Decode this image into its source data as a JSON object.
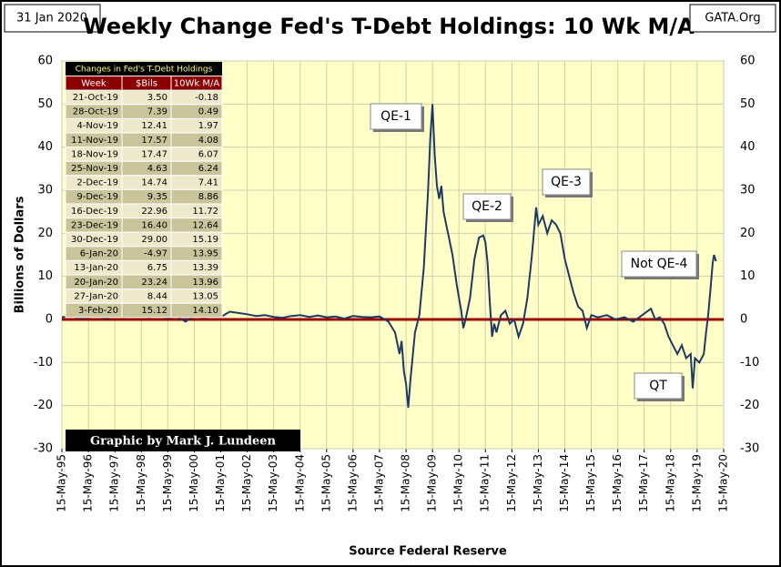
{
  "chart_data": {
    "type": "line",
    "title": "Weekly Change Fed's T-Debt Holdings: 10 Wk M/A",
    "date_label": "31 Jan 2020",
    "source_site": "GATA.Org",
    "ylabel": "Billions  of  Dollars",
    "xlabel": "Source Federal Reserve",
    "credit": "Graphic by Mark J. Lundeen",
    "annotations": [
      "QE-1",
      "QE-2",
      "QE-3",
      "Not QE-4",
      "QT"
    ],
    "xlim": [
      "1995-05-15",
      "2020-05-15"
    ],
    "xticks": [
      {
        "value": "1995-05-15",
        "label": "15-May-95"
      },
      {
        "value": "1996-05-15",
        "label": "15-May-96"
      },
      {
        "value": "1997-05-15",
        "label": "15-May-97"
      },
      {
        "value": "1998-05-15",
        "label": "15-May-98"
      },
      {
        "value": "1999-05-15",
        "label": "15-May-99"
      },
      {
        "value": "2000-05-15",
        "label": "15-May-00"
      },
      {
        "value": "2001-05-15",
        "label": "15-May-01"
      },
      {
        "value": "2002-05-15",
        "label": "15-May-02"
      },
      {
        "value": "2003-05-15",
        "label": "15-May-03"
      },
      {
        "value": "2004-05-15",
        "label": "15-May-04"
      },
      {
        "value": "2005-05-15",
        "label": "15-May-05"
      },
      {
        "value": "2006-05-15",
        "label": "15-May-06"
      },
      {
        "value": "2007-05-15",
        "label": "15-May-07"
      },
      {
        "value": "2008-05-15",
        "label": "15-May-08"
      },
      {
        "value": "2009-05-15",
        "label": "15-May-09"
      },
      {
        "value": "2010-05-15",
        "label": "15-May-10"
      },
      {
        "value": "2011-05-15",
        "label": "15-May-11"
      },
      {
        "value": "2012-05-15",
        "label": "15-May-12"
      },
      {
        "value": "2013-05-15",
        "label": "15-May-13"
      },
      {
        "value": "2014-05-15",
        "label": "15-May-14"
      },
      {
        "value": "2015-05-15",
        "label": "15-May-15"
      },
      {
        "value": "2016-05-15",
        "label": "15-May-16"
      },
      {
        "value": "2017-05-15",
        "label": "15-May-17"
      },
      {
        "value": "2018-05-15",
        "label": "15-May-18"
      },
      {
        "value": "2019-05-15",
        "label": "15-May-19"
      },
      {
        "value": "2020-05-15",
        "label": "15-May-20"
      }
    ],
    "ylim": [
      -30,
      60
    ],
    "yticks": [
      -30,
      -20,
      -10,
      0,
      10,
      20,
      30,
      40,
      50,
      60
    ],
    "grid": true,
    "hline": {
      "value": 0,
      "color": "#a00000"
    },
    "x": [
      "1995-05-15",
      "1995-09-15",
      "1996-01-15",
      "1996-05-15",
      "1996-09-15",
      "1997-01-15",
      "1997-05-15",
      "1997-09-15",
      "1998-01-15",
      "1998-05-15",
      "1998-09-15",
      "1999-01-15",
      "1999-05-15",
      "1999-09-15",
      "2000-01-15",
      "2000-05-15",
      "2000-09-15",
      "2001-01-15",
      "2001-05-15",
      "2001-09-15",
      "2002-01-15",
      "2002-05-15",
      "2002-09-15",
      "2003-01-15",
      "2003-05-15",
      "2003-09-15",
      "2004-01-15",
      "2004-05-15",
      "2004-09-15",
      "2005-01-15",
      "2005-05-15",
      "2005-09-15",
      "2006-01-15",
      "2006-05-15",
      "2006-09-15",
      "2007-01-15",
      "2007-05-15",
      "2007-09-15",
      "2007-12-15",
      "2008-02-15",
      "2008-03-15",
      "2008-04-15",
      "2008-05-15",
      "2008-06-15",
      "2008-07-15",
      "2008-09-15",
      "2008-11-15",
      "2009-01-15",
      "2009-03-15",
      "2009-04-15",
      "2009-05-15",
      "2009-06-15",
      "2009-07-15",
      "2009-08-15",
      "2009-09-15",
      "2009-10-15",
      "2009-12-15",
      "2010-02-15",
      "2010-04-15",
      "2010-06-15",
      "2010-07-15",
      "2010-08-15",
      "2010-10-15",
      "2010-12-15",
      "2011-02-15",
      "2011-04-15",
      "2011-05-15",
      "2011-06-15",
      "2011-07-15",
      "2011-08-15",
      "2011-09-15",
      "2011-10-15",
      "2011-12-15",
      "2012-02-15",
      "2012-04-15",
      "2012-06-15",
      "2012-08-15",
      "2012-10-15",
      "2012-12-15",
      "2013-02-15",
      "2013-04-15",
      "2013-05-15",
      "2013-07-15",
      "2013-09-15",
      "2013-11-15",
      "2014-01-15",
      "2014-03-15",
      "2014-05-15",
      "2014-07-15",
      "2014-09-15",
      "2014-11-15",
      "2015-01-15",
      "2015-03-15",
      "2015-05-15",
      "2015-08-15",
      "2015-12-15",
      "2016-04-15",
      "2016-08-15",
      "2016-12-15",
      "2017-04-15",
      "2017-08-15",
      "2017-10-15",
      "2017-12-15",
      "2018-02-15",
      "2018-04-15",
      "2018-06-15",
      "2018-08-15",
      "2018-10-15",
      "2018-12-15",
      "2019-02-15",
      "2019-03-15",
      "2019-04-15",
      "2019-06-15",
      "2019-08-15",
      "2019-09-15",
      "2019-10-15",
      "2019-11-15",
      "2019-12-15",
      "2020-01-03",
      "2020-01-31"
    ],
    "series": [
      {
        "color": "#1f3a60",
        "values": [
          0.5,
          0.8,
          0.3,
          0.5,
          1.0,
          0.2,
          1.2,
          0.5,
          1.5,
          0.8,
          0.5,
          1.2,
          0.3,
          0.8,
          -0.5,
          1.0,
          0.4,
          0.8,
          0.6,
          1.8,
          1.5,
          1.2,
          0.8,
          1.0,
          0.6,
          0.4,
          0.8,
          1.0,
          0.6,
          0.9,
          0.5,
          0.7,
          0.2,
          0.8,
          0.6,
          0.5,
          0.7,
          -0.5,
          -3,
          -8,
          -5,
          -12,
          -15,
          -20.5,
          -14,
          -3,
          1,
          12,
          30,
          42,
          50,
          38,
          31,
          28,
          31,
          25,
          20,
          15,
          8,
          2,
          -2,
          0,
          5,
          14,
          19,
          19.5,
          18,
          13,
          4,
          -4,
          -1,
          -3,
          1,
          2,
          -1,
          0,
          -4,
          -1,
          5,
          15,
          26,
          22,
          24,
          20,
          23,
          22,
          20,
          14,
          10,
          6,
          3,
          2,
          -2,
          1,
          0.5,
          1,
          0,
          0.5,
          -0.5,
          1,
          2.5,
          0,
          0.5,
          -1,
          -4,
          -6,
          -8,
          -6,
          -9,
          -8,
          -16,
          -9,
          -10,
          -8,
          -3,
          1,
          7,
          13,
          15,
          13.5
        ]
      }
    ]
  },
  "table": {
    "title": "Changes in Fed's T-Debt Holdings",
    "columns": [
      "Week",
      "$Bils",
      "10Wk M/A"
    ],
    "rows": [
      [
        "21-Oct-19",
        "3.50",
        "-0.18"
      ],
      [
        "28-Oct-19",
        "7.39",
        "0.49"
      ],
      [
        "4-Nov-19",
        "12.41",
        "1.97"
      ],
      [
        "11-Nov-19",
        "17.57",
        "4.08"
      ],
      [
        "18-Nov-19",
        "17.47",
        "6.07"
      ],
      [
        "25-Nov-19",
        "4.63",
        "6.24"
      ],
      [
        "2-Dec-19",
        "14.74",
        "7.41"
      ],
      [
        "9-Dec-19",
        "9.35",
        "8.86"
      ],
      [
        "16-Dec-19",
        "22.96",
        "11.72"
      ],
      [
        "23-Dec-19",
        "16.40",
        "12.64"
      ],
      [
        "30-Dec-19",
        "29.00",
        "15.19"
      ],
      [
        "6-Jan-20",
        "-4.97",
        "13.95"
      ],
      [
        "13-Jan-20",
        "6.75",
        "13.39"
      ],
      [
        "20-Jan-20",
        "23.24",
        "13.96"
      ],
      [
        "27-Jan-20",
        "8.44",
        "13.05"
      ],
      [
        "3-Feb-20",
        "15.12",
        "14.10"
      ]
    ]
  }
}
